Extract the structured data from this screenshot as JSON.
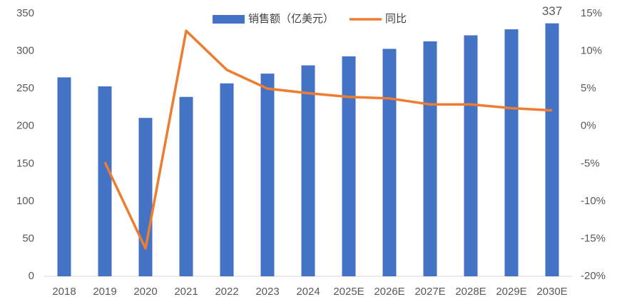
{
  "chart_data": {
    "type": "bar",
    "categories": [
      "2018",
      "2019",
      "2020",
      "2021",
      "2022",
      "2023",
      "2024",
      "2025E",
      "2026E",
      "2027E",
      "2028E",
      "2029E",
      "2030E"
    ],
    "series": [
      {
        "name": "销售额（亿美元）",
        "color": "#4472c4",
        "values": [
          265,
          253,
          211,
          239,
          257,
          270,
          281,
          293,
          303,
          313,
          321,
          329,
          337
        ],
        "value_labels": [
          null,
          null,
          null,
          null,
          null,
          null,
          null,
          null,
          null,
          null,
          null,
          null,
          "337"
        ]
      },
      {
        "name": "同比",
        "type": "line",
        "axis": "y2",
        "color": "#ed7d31",
        "values": [
          null,
          -4.8,
          -16.3,
          12.7,
          7.5,
          5.0,
          4.4,
          3.9,
          3.7,
          2.9,
          2.9,
          2.4,
          2.1
        ]
      }
    ],
    "ylim": [
      0,
      350
    ],
    "yticks": [
      0,
      50,
      100,
      150,
      200,
      250,
      300,
      350
    ],
    "y2lim": [
      -20,
      15
    ],
    "y2ticks": [
      {
        "value": -20,
        "label": "-20%"
      },
      {
        "value": -15,
        "label": "-15%"
      },
      {
        "value": -10,
        "label": "-10%"
      },
      {
        "value": -5,
        "label": "-5%"
      },
      {
        "value": 0,
        "label": "0%"
      },
      {
        "value": 5,
        "label": "5%"
      },
      {
        "value": 10,
        "label": "10%"
      },
      {
        "value": 15,
        "label": "15%"
      }
    ],
    "legend": "top"
  }
}
